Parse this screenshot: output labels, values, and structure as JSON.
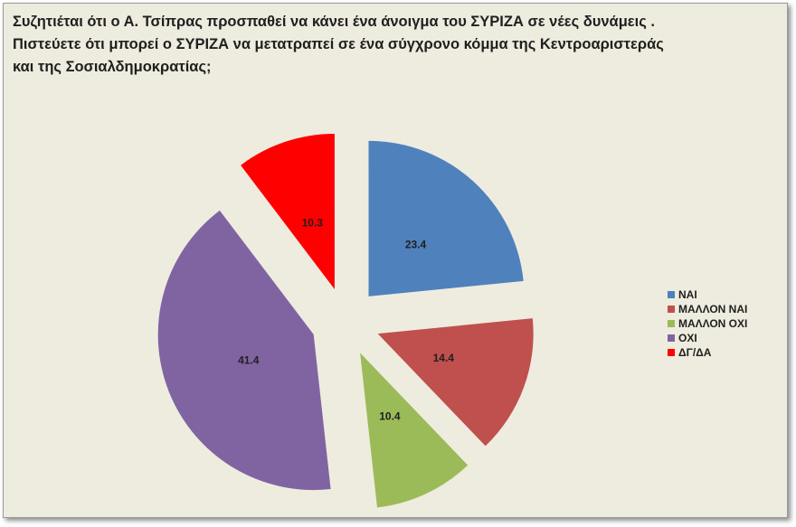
{
  "chart_data": {
    "type": "pie",
    "exploded": true,
    "title_lines": [
      "Συζητιέται ότι ο Α. Τσίπρας προσπαθεί να κάνει ένα άνοιγμα του ΣΥΡΙΖΑ σε νέες δυνάμεις .",
      "Πιστεύετε ότι μπορεί ο ΣΥΡΙΖΑ να μετατραπεί σε ένα σύγχρονο κόμμα της Κεντροαριστεράς",
      "και της Σοσιαλδημοκρατίας;"
    ],
    "legend_position": "right",
    "slices": [
      {
        "label": "ΝΑΙ",
        "value": 23.4,
        "display": "23.4",
        "color": "#4f81bd"
      },
      {
        "label": "ΜΑΛΛΟΝ ΝΑΙ",
        "value": 14.4,
        "display": "14.4",
        "color": "#c0504d"
      },
      {
        "label": "ΜΑΛΛΟΝ ΟΧΙ",
        "value": 10.4,
        "display": "10.4",
        "color": "#9bbb59"
      },
      {
        "label": "ΟΧΙ",
        "value": 41.4,
        "display": "41.4",
        "color": "#8064a2"
      },
      {
        "label": "ΔΓ/ΔΑ",
        "value": 10.3,
        "display": "10.3",
        "color": "#ff0000"
      }
    ]
  }
}
